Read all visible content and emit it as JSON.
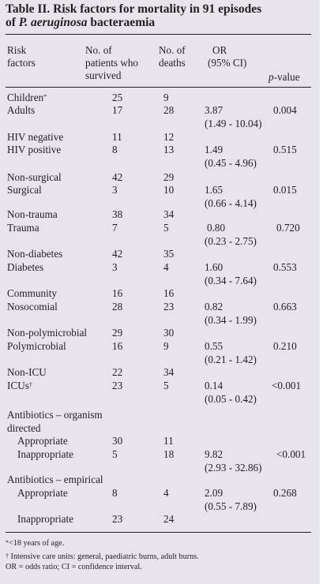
{
  "title_line1": "Table II. Risk factors for mortality in 91 episodes",
  "title_species": "P. aeruginosa",
  "title_line2_end": " bacteraemia",
  "headers": {
    "risk_l1": "Risk",
    "risk_l2": "factors",
    "surv_l1": "No. of",
    "surv_l2": "patients who",
    "surv_l3": "survived",
    "deaths_l1": "No. of",
    "deaths_l2": "deaths",
    "or_l1": "OR",
    "or_l2": "(95% CI)",
    "p_italic": "p",
    "p_rest": "-value"
  },
  "rows": [
    {
      "label": "Children",
      "sup": "*",
      "survived": "25",
      "deaths": "9",
      "or": "",
      "ci": "",
      "p": ""
    },
    {
      "label": "Adults",
      "survived": "17",
      "deaths": "28",
      "or": "3.87",
      "ci": "(1.49 - 10.04)",
      "p": "0.004"
    },
    {
      "label": "HIV negative",
      "survived": "11",
      "deaths": "12",
      "or": "",
      "ci": "",
      "p": ""
    },
    {
      "label": "HIV positive",
      "survived": "8",
      "deaths": "13",
      "or": "1.49",
      "ci": "(0.45 - 4.96)",
      "p": "0.515"
    },
    {
      "label": "Non-surgical",
      "survived": "42",
      "deaths": "29",
      "or": "",
      "ci": "",
      "p": ""
    },
    {
      "label": "Surgical",
      "survived": "3",
      "deaths": "10",
      "or": "1.65",
      "ci": "(0.66 - 4.14)",
      "p": "0.015"
    },
    {
      "label": "Non-trauma",
      "survived": "38",
      "deaths": "34",
      "or": "",
      "ci": "",
      "p": ""
    },
    {
      "label": "Trauma",
      "survived": "7",
      "deaths": "5",
      "or": "0.80",
      "ci": "(0.23 - 2.75)",
      "p": "0.720"
    },
    {
      "label": "Non-diabetes",
      "survived": "42",
      "deaths": "35",
      "or": "",
      "ci": "",
      "p": ""
    },
    {
      "label": "Diabetes",
      "survived": "3",
      "deaths": "4",
      "or": "1.60",
      "ci": "(0.34  - 7.64)",
      "p": "0.553"
    },
    {
      "label": "Community",
      "survived": "16",
      "deaths": "16",
      "or": "",
      "ci": "",
      "p": ""
    },
    {
      "label": "Nosocomial",
      "survived": "28",
      "deaths": "23",
      "or": "0.82",
      "ci": "(0.34 - 1.99)",
      "p": "0.663"
    },
    {
      "label": "Non-polymicrobial",
      "survived": "29",
      "deaths": "30",
      "or": "",
      "ci": "",
      "p": ""
    },
    {
      "label": "Polymicrobial",
      "survived": "16",
      "deaths": "9",
      "or": "0.55",
      "ci": "(0.21 - 1.42)",
      "p": "0.210"
    },
    {
      "label": "Non-ICU",
      "survived": "22",
      "deaths": "34",
      "or": "",
      "ci": "",
      "p": ""
    },
    {
      "label": "ICUs",
      "sup": "†",
      "survived": "23",
      "deaths": "5",
      "or": "0.14",
      "ci": "(0.05 - 0.42)",
      "p": "<0.001"
    },
    {
      "label": "Antibiotics – organism",
      "survived": "",
      "deaths": "",
      "or": "",
      "ci": "",
      "p": ""
    },
    {
      "label": "directed",
      "survived": "",
      "deaths": "",
      "or": "",
      "ci": "",
      "p": ""
    },
    {
      "label": "Appropriate",
      "survived": "30",
      "deaths": "11",
      "or": "",
      "ci": "",
      "p": ""
    },
    {
      "label": "Inappropriate",
      "survived": "5",
      "deaths": "18",
      "or": "9.82",
      "ci": "(2.93 - 32.86)",
      "p": "<0.001"
    },
    {
      "label": "Antibiotics – empirical",
      "survived": "",
      "deaths": "",
      "or": "",
      "ci": "",
      "p": ""
    },
    {
      "label": "Appropriate",
      "survived": "8",
      "deaths": "4",
      "or": "2.09",
      "ci": "(0.55 - 7.89)",
      "p": "0.268"
    },
    {
      "label": "Inappropriate",
      "survived": "23",
      "deaths": "24",
      "or": "",
      "ci": "",
      "p": ""
    }
  ],
  "footnotes": {
    "f1_sym": "*",
    "f1_text": "<18 years of age.",
    "f2_sym": "†",
    "f2_text": " Intensive care units: general, paediatric burns, adult burns.",
    "f3_text": "OR = odds ratio; CI = confidence interval."
  }
}
